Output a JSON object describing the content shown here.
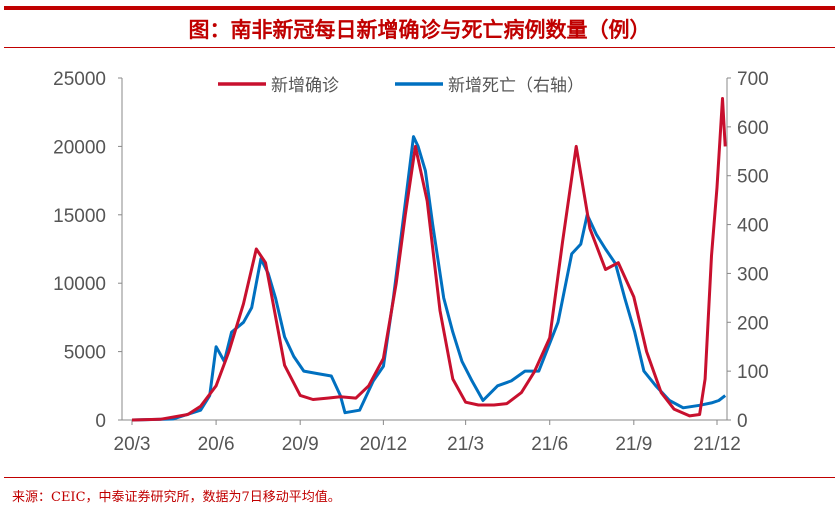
{
  "title": "图：南非新冠每日新增确诊与死亡病例数量（例）",
  "source": "来源：CEIC，中泰证券研究所，数据为7日移动平均值。",
  "chart_data": {
    "type": "line",
    "title": "图：南非新冠每日新增确诊与死亡病例数量（例）",
    "xlim": [
      "2020-03-01",
      "2021-12-12"
    ],
    "x_ticks": [
      {
        "date": "2020-03-01",
        "label": "20/3"
      },
      {
        "date": "2020-06-01",
        "label": "20/6"
      },
      {
        "date": "2020-09-01",
        "label": "20/9"
      },
      {
        "date": "2020-12-01",
        "label": "20/12"
      },
      {
        "date": "2021-03-01",
        "label": "21/3"
      },
      {
        "date": "2021-06-01",
        "label": "21/6"
      },
      {
        "date": "2021-09-01",
        "label": "21/9"
      },
      {
        "date": "2021-12-01",
        "label": "21/12"
      }
    ],
    "y_left": {
      "range": [
        0,
        25000
      ],
      "ticks": [
        0,
        5000,
        10000,
        15000,
        20000,
        25000
      ]
    },
    "y_right": {
      "range": [
        0,
        700
      ],
      "ticks": [
        0,
        100,
        200,
        300,
        400,
        500,
        600,
        700
      ]
    },
    "grid": false,
    "legend": "top-center",
    "series": [
      {
        "name": "新增确诊",
        "axis": "left",
        "color": "#c8102e",
        "points": [
          [
            "2020-03-01",
            0
          ],
          [
            "2020-04-01",
            50
          ],
          [
            "2020-05-01",
            400
          ],
          [
            "2020-05-15",
            1000
          ],
          [
            "2020-06-01",
            2500
          ],
          [
            "2020-06-15",
            5000
          ],
          [
            "2020-07-01",
            8500
          ],
          [
            "2020-07-15",
            12500
          ],
          [
            "2020-07-25",
            11500
          ],
          [
            "2020-08-01",
            9000
          ],
          [
            "2020-08-15",
            4000
          ],
          [
            "2020-09-01",
            1800
          ],
          [
            "2020-09-15",
            1500
          ],
          [
            "2020-10-01",
            1600
          ],
          [
            "2020-10-15",
            1700
          ],
          [
            "2020-11-01",
            1600
          ],
          [
            "2020-11-15",
            2500
          ],
          [
            "2020-12-01",
            4500
          ],
          [
            "2020-12-15",
            10000
          ],
          [
            "2020-12-25",
            15000
          ],
          [
            "2021-01-05",
            20000
          ],
          [
            "2021-01-18",
            16000
          ],
          [
            "2021-02-01",
            8000
          ],
          [
            "2021-02-15",
            3000
          ],
          [
            "2021-03-01",
            1300
          ],
          [
            "2021-03-15",
            1100
          ],
          [
            "2021-04-01",
            1100
          ],
          [
            "2021-04-15",
            1200
          ],
          [
            "2021-05-01",
            2000
          ],
          [
            "2021-05-15",
            3500
          ],
          [
            "2021-06-01",
            6000
          ],
          [
            "2021-06-15",
            13000
          ],
          [
            "2021-06-30",
            20000
          ],
          [
            "2021-07-15",
            14000
          ],
          [
            "2021-08-01",
            11000
          ],
          [
            "2021-08-15",
            11500
          ],
          [
            "2021-09-01",
            9000
          ],
          [
            "2021-09-15",
            5000
          ],
          [
            "2021-10-01",
            2000
          ],
          [
            "2021-10-15",
            800
          ],
          [
            "2021-11-01",
            300
          ],
          [
            "2021-11-12",
            400
          ],
          [
            "2021-11-18",
            3000
          ],
          [
            "2021-11-25",
            12000
          ],
          [
            "2021-12-01",
            17000
          ],
          [
            "2021-12-07",
            23500
          ],
          [
            "2021-12-10",
            20000
          ]
        ]
      },
      {
        "name": "新增死亡（右轴）",
        "axis": "right",
        "color": "#0070c0",
        "points": [
          [
            "2020-03-01",
            0
          ],
          [
            "2020-04-15",
            2
          ],
          [
            "2020-05-15",
            20
          ],
          [
            "2020-05-25",
            50
          ],
          [
            "2020-06-01",
            150
          ],
          [
            "2020-06-10",
            120
          ],
          [
            "2020-06-18",
            180
          ],
          [
            "2020-07-01",
            200
          ],
          [
            "2020-07-10",
            230
          ],
          [
            "2020-07-20",
            330
          ],
          [
            "2020-07-28",
            300
          ],
          [
            "2020-08-05",
            250
          ],
          [
            "2020-08-15",
            170
          ],
          [
            "2020-08-25",
            130
          ],
          [
            "2020-09-05",
            100
          ],
          [
            "2020-09-20",
            95
          ],
          [
            "2020-10-05",
            90
          ],
          [
            "2020-10-15",
            50
          ],
          [
            "2020-10-20",
            15
          ],
          [
            "2020-11-05",
            20
          ],
          [
            "2020-11-20",
            80
          ],
          [
            "2020-12-01",
            110
          ],
          [
            "2020-12-12",
            250
          ],
          [
            "2020-12-22",
            400
          ],
          [
            "2021-01-03",
            580
          ],
          [
            "2021-01-08",
            560
          ],
          [
            "2021-01-16",
            510
          ],
          [
            "2021-01-24",
            400
          ],
          [
            "2021-02-05",
            250
          ],
          [
            "2021-02-15",
            180
          ],
          [
            "2021-02-25",
            120
          ],
          [
            "2021-03-08",
            80
          ],
          [
            "2021-03-20",
            40
          ],
          [
            "2021-04-05",
            70
          ],
          [
            "2021-04-20",
            80
          ],
          [
            "2021-05-05",
            100
          ],
          [
            "2021-05-20",
            100
          ],
          [
            "2021-06-10",
            200
          ],
          [
            "2021-06-25",
            340
          ],
          [
            "2021-07-05",
            360
          ],
          [
            "2021-07-12",
            420
          ],
          [
            "2021-07-22",
            380
          ],
          [
            "2021-08-01",
            350
          ],
          [
            "2021-08-12",
            320
          ],
          [
            "2021-08-22",
            250
          ],
          [
            "2021-09-02",
            180
          ],
          [
            "2021-09-12",
            100
          ],
          [
            "2021-09-25",
            70
          ],
          [
            "2021-10-10",
            40
          ],
          [
            "2021-10-25",
            25
          ],
          [
            "2021-11-12",
            30
          ],
          [
            "2021-11-25",
            35
          ],
          [
            "2021-12-03",
            40
          ],
          [
            "2021-12-10",
            50
          ]
        ]
      }
    ]
  }
}
